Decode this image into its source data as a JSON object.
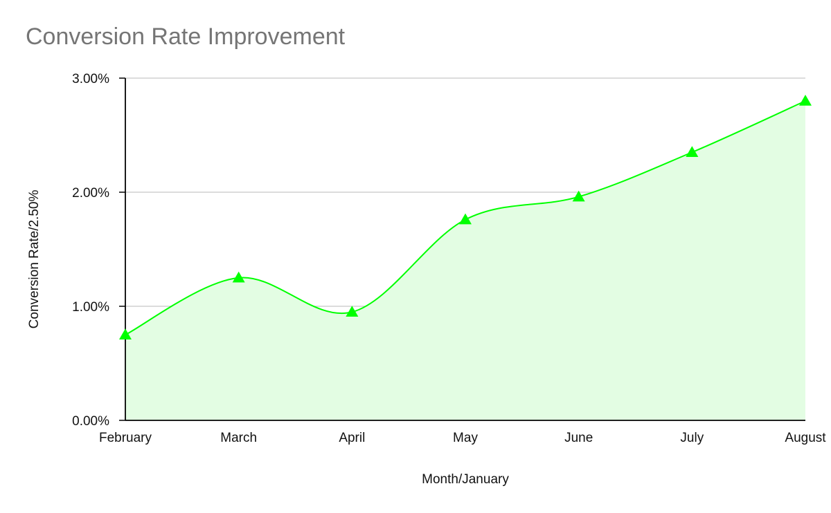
{
  "chart_data": {
    "type": "area",
    "title": "Conversion Rate Improvement",
    "xlabel": "Month/January",
    "ylabel": "Conversion Rate/2.50%",
    "categories": [
      "February",
      "March",
      "April",
      "May",
      "June",
      "July",
      "August"
    ],
    "series": [
      {
        "values": [
          0.75,
          1.25,
          0.95,
          1.76,
          1.96,
          2.35,
          2.8
        ],
        "color": "#00ff00",
        "fill": "#e3fde3",
        "marker": "triangle"
      }
    ],
    "ylim": [
      0,
      3
    ],
    "yticks": [
      0,
      1,
      2,
      3
    ],
    "ytick_labels": [
      "0.00%",
      "1.00%",
      "2.00%",
      "3.00%"
    ],
    "grid": true,
    "grid_color": "#c8c8c8",
    "smooth": true
  }
}
